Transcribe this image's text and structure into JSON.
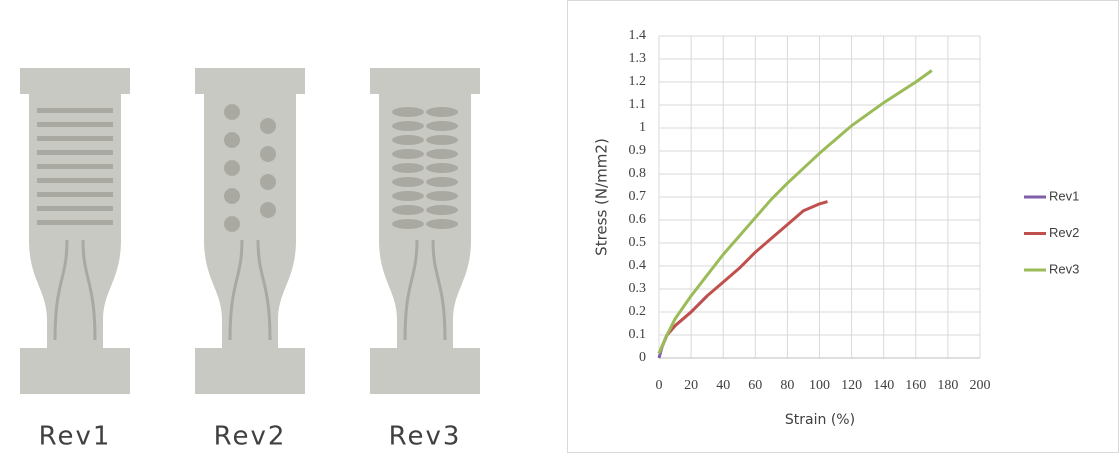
{
  "photo": {
    "labels": [
      "Rev1",
      "Rev2",
      "Rev3"
    ]
  },
  "chart_data": {
    "type": "line",
    "xlabel": "Strain (%)",
    "ylabel": "Stress (N/mm2)",
    "xlim": [
      0,
      200
    ],
    "xticks": [
      0,
      20,
      40,
      60,
      80,
      100,
      120,
      140,
      160,
      180,
      200
    ],
    "ylim": [
      0,
      1.4
    ],
    "yticks": [
      0,
      0.1,
      0.2,
      0.3,
      0.4,
      0.5,
      0.6,
      0.7,
      0.8,
      0.9,
      1,
      1.1,
      1.2,
      1.3,
      1.4
    ],
    "grid": true,
    "legend": "right",
    "series": [
      {
        "name": "Rev1",
        "color": "#7f5fa8",
        "x": [
          0,
          2,
          5,
          10,
          20,
          30
        ],
        "values": [
          0,
          0.05,
          0.1,
          0.14,
          0.2,
          0.27
        ]
      },
      {
        "name": "Rev2",
        "color": "#c0504d",
        "x": [
          0,
          5,
          10,
          20,
          30,
          40,
          50,
          60,
          70,
          80,
          90,
          100,
          105
        ],
        "values": [
          0.02,
          0.1,
          0.14,
          0.2,
          0.27,
          0.33,
          0.39,
          0.46,
          0.52,
          0.58,
          0.64,
          0.67,
          0.68
        ]
      },
      {
        "name": "Rev3",
        "color": "#9bbb59",
        "x": [
          0,
          5,
          10,
          20,
          30,
          40,
          50,
          60,
          70,
          80,
          100,
          120,
          140,
          160,
          170
        ],
        "values": [
          0.02,
          0.1,
          0.17,
          0.27,
          0.36,
          0.45,
          0.53,
          0.61,
          0.69,
          0.76,
          0.89,
          1.01,
          1.11,
          1.2,
          1.25
        ]
      }
    ]
  }
}
